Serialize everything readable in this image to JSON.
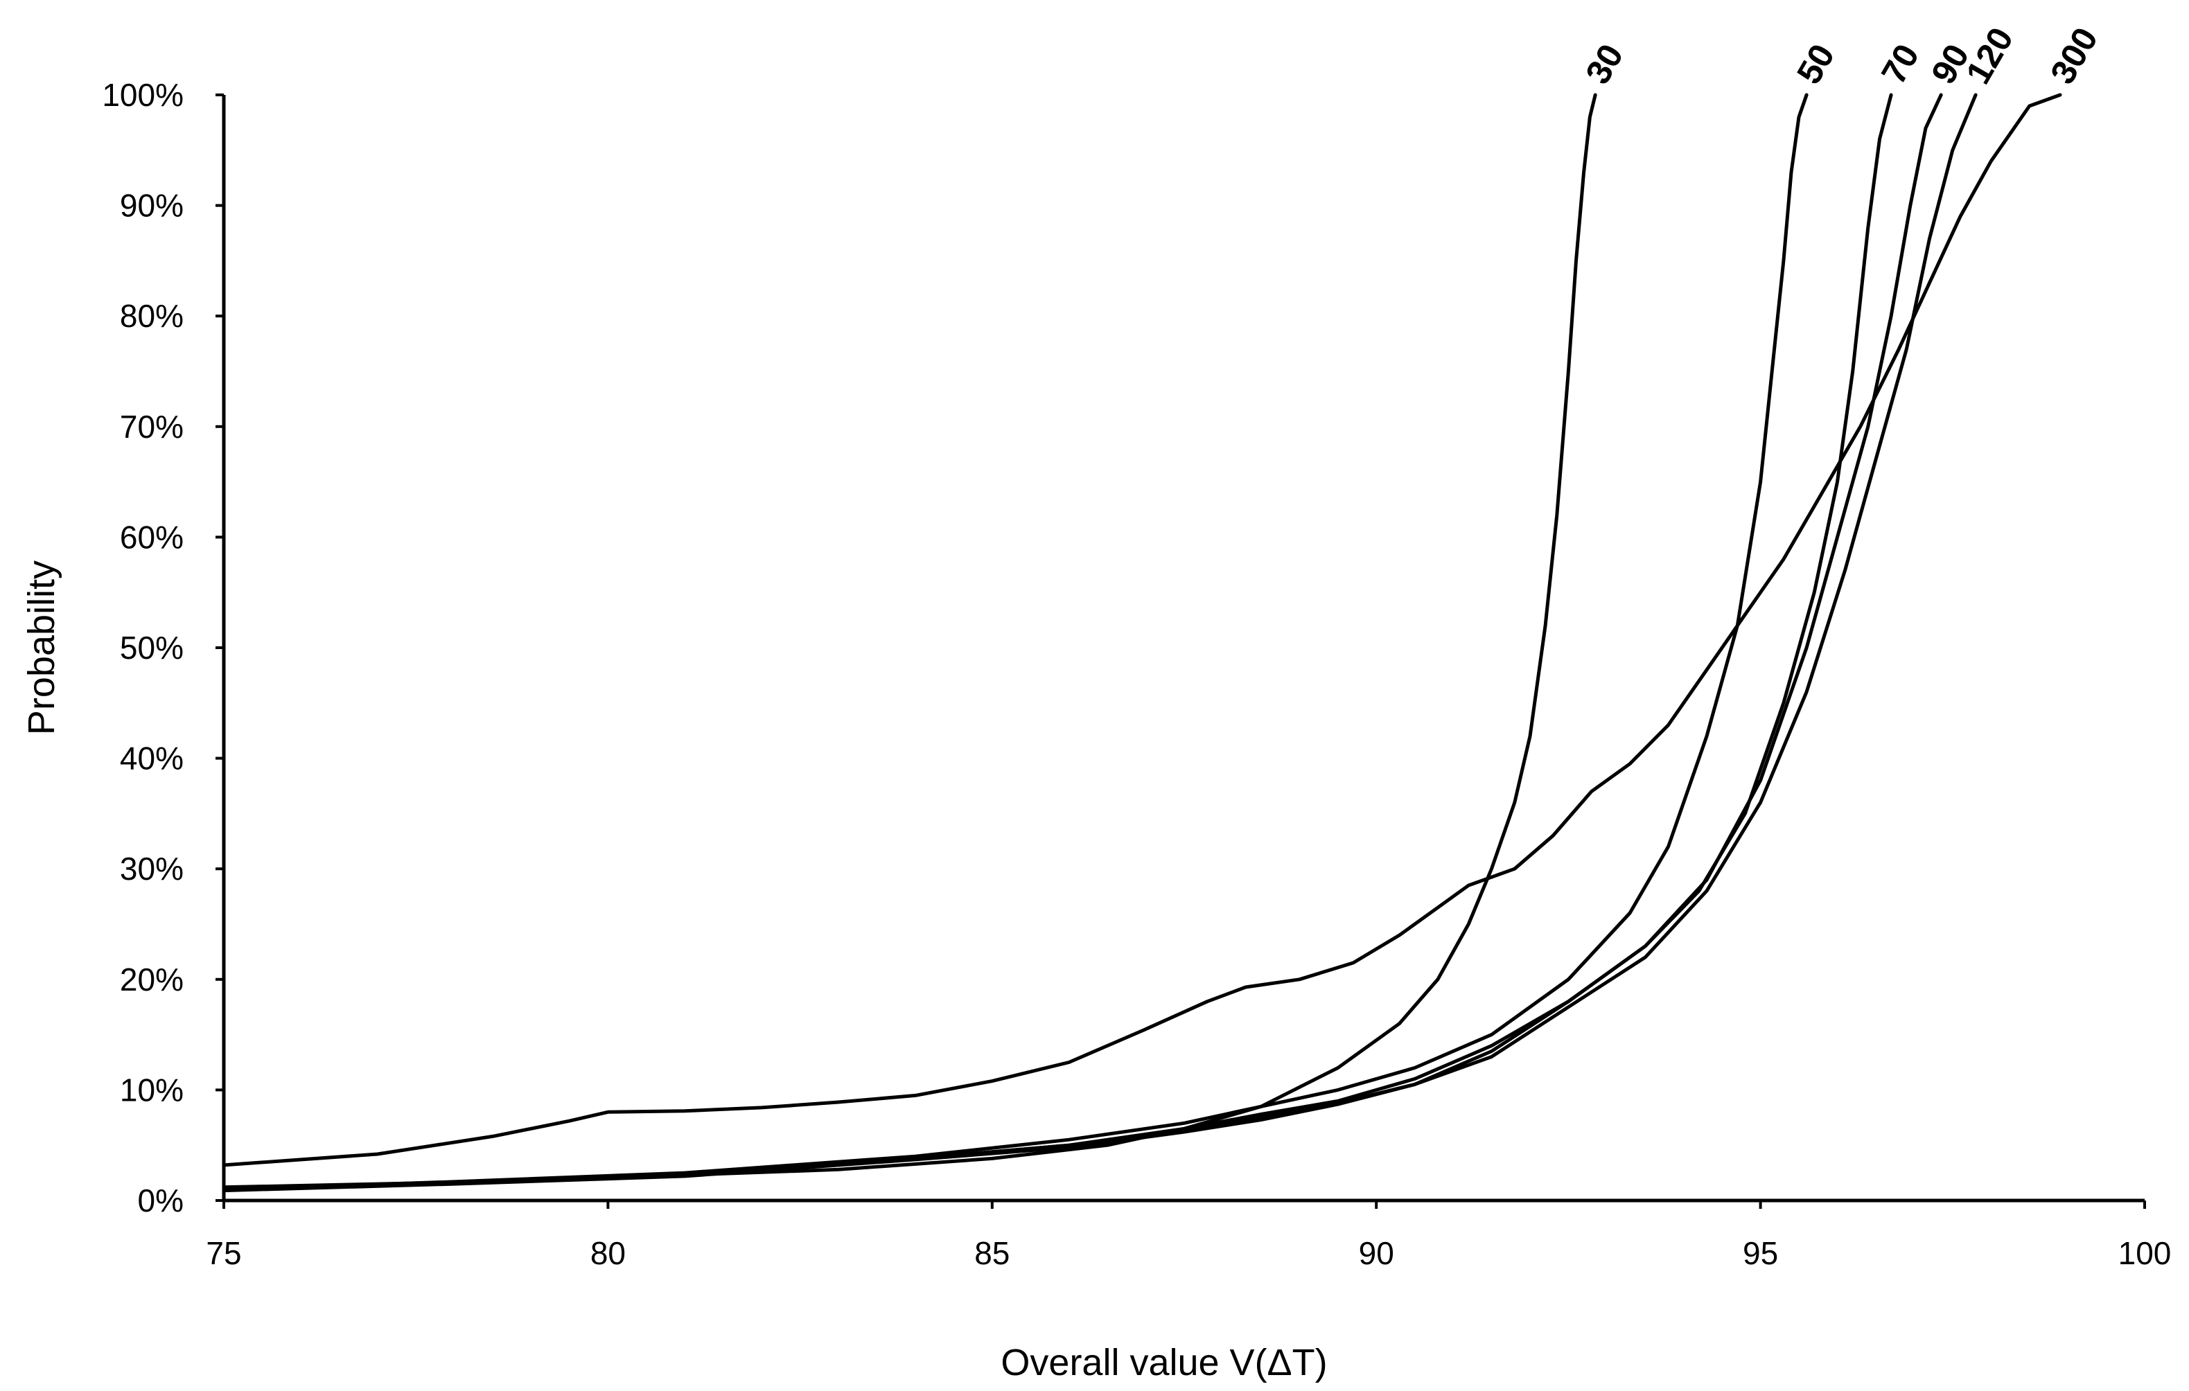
{
  "chart_data": {
    "type": "line",
    "title": "",
    "xlabel": "Overall value V(ΔT)",
    "ylabel": "Probability",
    "xlim": [
      75,
      100
    ],
    "ylim": [
      0,
      100
    ],
    "x_ticks": [
      "75",
      "80",
      "85",
      "90",
      "95",
      "100"
    ],
    "y_ticks": [
      "0%",
      "10%",
      "20%",
      "30%",
      "40%",
      "50%",
      "60%",
      "70%",
      "80%",
      "90%",
      "100%"
    ],
    "grid": false,
    "legend": "inline labels at top end of each curve",
    "series": [
      {
        "name": "30",
        "x": [
          75,
          77,
          79,
          81,
          83,
          85,
          86.5,
          87.5,
          88.5,
          89.5,
          90.3,
          90.8,
          91.2,
          91.5,
          91.8,
          92.0,
          92.2,
          92.35,
          92.5,
          92.6,
          92.7,
          92.78,
          92.85
        ],
        "y": [
          1.2,
          1.5,
          1.8,
          2.3,
          2.8,
          3.8,
          5,
          6.5,
          8.5,
          12,
          16,
          20,
          25,
          30,
          36,
          42,
          52,
          62,
          75,
          85,
          93,
          98,
          100
        ]
      },
      {
        "name": "50",
        "x": [
          75,
          78,
          81,
          84,
          86,
          87.5,
          88.5,
          89.5,
          90.5,
          91.5,
          92.5,
          93.3,
          93.8,
          94.3,
          94.7,
          95.0,
          95.15,
          95.3,
          95.4,
          95.5,
          95.6
        ],
        "y": [
          1,
          1.7,
          2.5,
          4,
          5.5,
          7,
          8.5,
          10,
          12,
          15,
          20,
          26,
          32,
          42,
          52,
          65,
          75,
          85,
          93,
          98,
          100
        ]
      },
      {
        "name": "70",
        "x": [
          75,
          78,
          81,
          84,
          86,
          87.5,
          88.5,
          89.5,
          90.5,
          91.5,
          92.5,
          93.5,
          94.2,
          94.8,
          95.3,
          95.7,
          96.0,
          96.2,
          96.4,
          96.55,
          96.7
        ],
        "y": [
          1,
          1.6,
          2.3,
          3.8,
          5,
          6.5,
          7.8,
          9,
          11,
          14,
          18,
          23,
          28,
          35,
          45,
          55,
          65,
          75,
          88,
          96,
          100
        ]
      },
      {
        "name": "90",
        "x": [
          75,
          78,
          81,
          84,
          86,
          87.5,
          88.5,
          89.5,
          90.5,
          91.5,
          92.5,
          93.5,
          94.3,
          95.0,
          95.6,
          96.0,
          96.4,
          96.7,
          96.95,
          97.15,
          97.35
        ],
        "y": [
          1,
          1.6,
          2.3,
          3.8,
          5,
          6.3,
          7.5,
          8.8,
          10.5,
          13.5,
          18,
          23,
          29,
          38,
          50,
          60,
          70,
          80,
          90,
          97,
          100
        ]
      },
      {
        "name": "120",
        "x": [
          75,
          78,
          81,
          84,
          86,
          87.5,
          88.5,
          89.5,
          90.5,
          91.5,
          92.5,
          93.5,
          94.3,
          95.0,
          95.6,
          96.1,
          96.5,
          96.9,
          97.2,
          97.5,
          97.8
        ],
        "y": [
          0.9,
          1.5,
          2.2,
          3.7,
          4.8,
          6.2,
          7.3,
          8.7,
          10.5,
          13,
          17.5,
          22,
          28,
          36,
          46,
          57,
          67,
          77,
          87,
          95,
          100
        ]
      },
      {
        "name": "300",
        "x": [
          75,
          77,
          78.5,
          79.5,
          80,
          81,
          82,
          83,
          84,
          85,
          86,
          87,
          87.8,
          88.3,
          89,
          89.7,
          90.3,
          90.8,
          91.2,
          91.8,
          92.3,
          92.8,
          93.3,
          93.8,
          94.3,
          94.8,
          95.3,
          95.8,
          96.3,
          96.8,
          97.2,
          97.6,
          98.0,
          98.3,
          98.5,
          98.9
        ],
        "y": [
          3.2,
          4.2,
          5.8,
          7.2,
          8,
          8.1,
          8.4,
          8.9,
          9.5,
          10.8,
          12.5,
          15.5,
          18,
          19.3,
          20,
          21.5,
          24,
          26.5,
          28.5,
          30,
          33,
          37,
          39.5,
          43,
          48,
          53,
          58,
          64,
          70,
          77,
          83,
          89,
          94,
          97,
          99,
          100
        ]
      }
    ]
  }
}
